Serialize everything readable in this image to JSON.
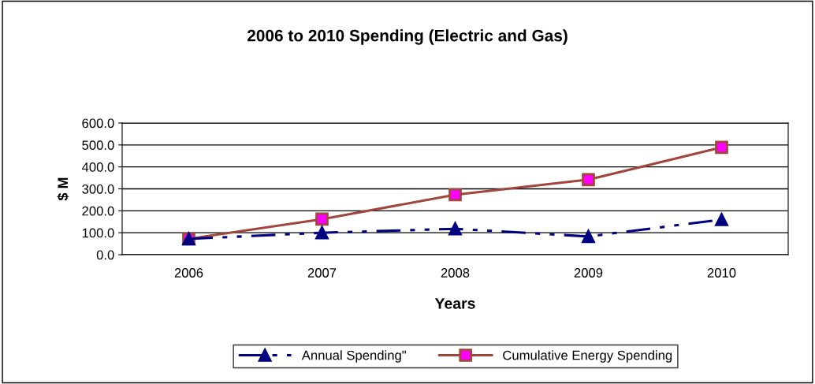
{
  "chart_data": {
    "type": "line",
    "title": "2006 to 2010 Spending (Electric and Gas)",
    "xlabel": "Years",
    "ylabel": "$ M",
    "categories": [
      "2006",
      "2007",
      "2008",
      "2009",
      "2010"
    ],
    "series": [
      {
        "name": "Annual Spending\"",
        "color": "#000080",
        "marker": "triangle",
        "line_style": "dashed",
        "values": [
          72,
          100,
          118,
          83,
          160
        ]
      },
      {
        "name": "Cumulative Energy Spending",
        "color": "#a0463c",
        "marker": "square",
        "line_style": "solid",
        "values": [
          72,
          162,
          273,
          342,
          489
        ]
      }
    ],
    "ylim": [
      0,
      600
    ],
    "yticks": [
      {
        "value": 0,
        "label": "0.0"
      },
      {
        "value": 100,
        "label": "100.0"
      },
      {
        "value": 200,
        "label": "200.0"
      },
      {
        "value": 300,
        "label": "300.0"
      },
      {
        "value": 400,
        "label": "400.0"
      },
      {
        "value": 500,
        "label": "500.0"
      },
      {
        "value": 600,
        "label": "600.0"
      }
    ],
    "grid": "y",
    "legend": "bottom"
  }
}
